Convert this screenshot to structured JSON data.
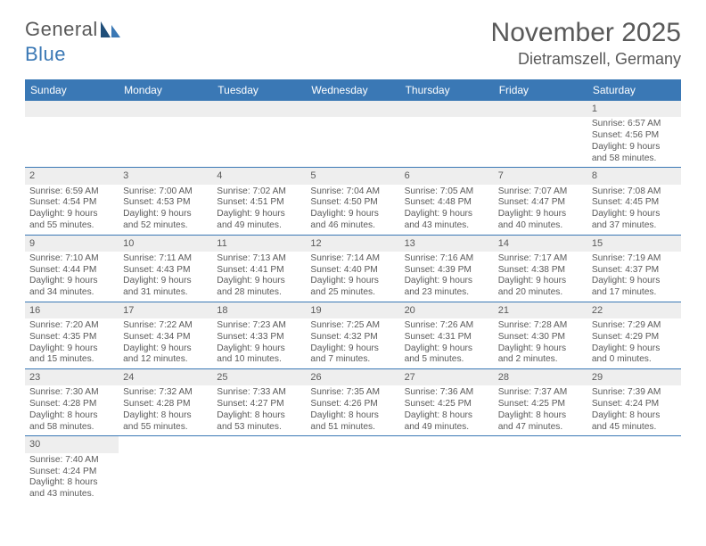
{
  "logo": {
    "text1": "General",
    "text2": "Blue"
  },
  "title": "November 2025",
  "location": "Dietramszell, Germany",
  "colors": {
    "header_bg": "#3a78b5",
    "header_text": "#ffffff",
    "daynum_bg": "#eeeeee",
    "text": "#5a5a5a",
    "rule": "#3a78b5"
  },
  "weekday_labels": [
    "Sunday",
    "Monday",
    "Tuesday",
    "Wednesday",
    "Thursday",
    "Friday",
    "Saturday"
  ],
  "weeks": [
    [
      {
        "n": "",
        "rise": "",
        "set": "",
        "day": ""
      },
      {
        "n": "",
        "rise": "",
        "set": "",
        "day": ""
      },
      {
        "n": "",
        "rise": "",
        "set": "",
        "day": ""
      },
      {
        "n": "",
        "rise": "",
        "set": "",
        "day": ""
      },
      {
        "n": "",
        "rise": "",
        "set": "",
        "day": ""
      },
      {
        "n": "",
        "rise": "",
        "set": "",
        "day": ""
      },
      {
        "n": "1",
        "rise": "Sunrise: 6:57 AM",
        "set": "Sunset: 4:56 PM",
        "day": "Daylight: 9 hours and 58 minutes."
      }
    ],
    [
      {
        "n": "2",
        "rise": "Sunrise: 6:59 AM",
        "set": "Sunset: 4:54 PM",
        "day": "Daylight: 9 hours and 55 minutes."
      },
      {
        "n": "3",
        "rise": "Sunrise: 7:00 AM",
        "set": "Sunset: 4:53 PM",
        "day": "Daylight: 9 hours and 52 minutes."
      },
      {
        "n": "4",
        "rise": "Sunrise: 7:02 AM",
        "set": "Sunset: 4:51 PM",
        "day": "Daylight: 9 hours and 49 minutes."
      },
      {
        "n": "5",
        "rise": "Sunrise: 7:04 AM",
        "set": "Sunset: 4:50 PM",
        "day": "Daylight: 9 hours and 46 minutes."
      },
      {
        "n": "6",
        "rise": "Sunrise: 7:05 AM",
        "set": "Sunset: 4:48 PM",
        "day": "Daylight: 9 hours and 43 minutes."
      },
      {
        "n": "7",
        "rise": "Sunrise: 7:07 AM",
        "set": "Sunset: 4:47 PM",
        "day": "Daylight: 9 hours and 40 minutes."
      },
      {
        "n": "8",
        "rise": "Sunrise: 7:08 AM",
        "set": "Sunset: 4:45 PM",
        "day": "Daylight: 9 hours and 37 minutes."
      }
    ],
    [
      {
        "n": "9",
        "rise": "Sunrise: 7:10 AM",
        "set": "Sunset: 4:44 PM",
        "day": "Daylight: 9 hours and 34 minutes."
      },
      {
        "n": "10",
        "rise": "Sunrise: 7:11 AM",
        "set": "Sunset: 4:43 PM",
        "day": "Daylight: 9 hours and 31 minutes."
      },
      {
        "n": "11",
        "rise": "Sunrise: 7:13 AM",
        "set": "Sunset: 4:41 PM",
        "day": "Daylight: 9 hours and 28 minutes."
      },
      {
        "n": "12",
        "rise": "Sunrise: 7:14 AM",
        "set": "Sunset: 4:40 PM",
        "day": "Daylight: 9 hours and 25 minutes."
      },
      {
        "n": "13",
        "rise": "Sunrise: 7:16 AM",
        "set": "Sunset: 4:39 PM",
        "day": "Daylight: 9 hours and 23 minutes."
      },
      {
        "n": "14",
        "rise": "Sunrise: 7:17 AM",
        "set": "Sunset: 4:38 PM",
        "day": "Daylight: 9 hours and 20 minutes."
      },
      {
        "n": "15",
        "rise": "Sunrise: 7:19 AM",
        "set": "Sunset: 4:37 PM",
        "day": "Daylight: 9 hours and 17 minutes."
      }
    ],
    [
      {
        "n": "16",
        "rise": "Sunrise: 7:20 AM",
        "set": "Sunset: 4:35 PM",
        "day": "Daylight: 9 hours and 15 minutes."
      },
      {
        "n": "17",
        "rise": "Sunrise: 7:22 AM",
        "set": "Sunset: 4:34 PM",
        "day": "Daylight: 9 hours and 12 minutes."
      },
      {
        "n": "18",
        "rise": "Sunrise: 7:23 AM",
        "set": "Sunset: 4:33 PM",
        "day": "Daylight: 9 hours and 10 minutes."
      },
      {
        "n": "19",
        "rise": "Sunrise: 7:25 AM",
        "set": "Sunset: 4:32 PM",
        "day": "Daylight: 9 hours and 7 minutes."
      },
      {
        "n": "20",
        "rise": "Sunrise: 7:26 AM",
        "set": "Sunset: 4:31 PM",
        "day": "Daylight: 9 hours and 5 minutes."
      },
      {
        "n": "21",
        "rise": "Sunrise: 7:28 AM",
        "set": "Sunset: 4:30 PM",
        "day": "Daylight: 9 hours and 2 minutes."
      },
      {
        "n": "22",
        "rise": "Sunrise: 7:29 AM",
        "set": "Sunset: 4:29 PM",
        "day": "Daylight: 9 hours and 0 minutes."
      }
    ],
    [
      {
        "n": "23",
        "rise": "Sunrise: 7:30 AM",
        "set": "Sunset: 4:28 PM",
        "day": "Daylight: 8 hours and 58 minutes."
      },
      {
        "n": "24",
        "rise": "Sunrise: 7:32 AM",
        "set": "Sunset: 4:28 PM",
        "day": "Daylight: 8 hours and 55 minutes."
      },
      {
        "n": "25",
        "rise": "Sunrise: 7:33 AM",
        "set": "Sunset: 4:27 PM",
        "day": "Daylight: 8 hours and 53 minutes."
      },
      {
        "n": "26",
        "rise": "Sunrise: 7:35 AM",
        "set": "Sunset: 4:26 PM",
        "day": "Daylight: 8 hours and 51 minutes."
      },
      {
        "n": "27",
        "rise": "Sunrise: 7:36 AM",
        "set": "Sunset: 4:25 PM",
        "day": "Daylight: 8 hours and 49 minutes."
      },
      {
        "n": "28",
        "rise": "Sunrise: 7:37 AM",
        "set": "Sunset: 4:25 PM",
        "day": "Daylight: 8 hours and 47 minutes."
      },
      {
        "n": "29",
        "rise": "Sunrise: 7:39 AM",
        "set": "Sunset: 4:24 PM",
        "day": "Daylight: 8 hours and 45 minutes."
      }
    ],
    [
      {
        "n": "30",
        "rise": "Sunrise: 7:40 AM",
        "set": "Sunset: 4:24 PM",
        "day": "Daylight: 8 hours and 43 minutes."
      },
      {
        "n": "",
        "rise": "",
        "set": "",
        "day": ""
      },
      {
        "n": "",
        "rise": "",
        "set": "",
        "day": ""
      },
      {
        "n": "",
        "rise": "",
        "set": "",
        "day": ""
      },
      {
        "n": "",
        "rise": "",
        "set": "",
        "day": ""
      },
      {
        "n": "",
        "rise": "",
        "set": "",
        "day": ""
      },
      {
        "n": "",
        "rise": "",
        "set": "",
        "day": ""
      }
    ]
  ]
}
